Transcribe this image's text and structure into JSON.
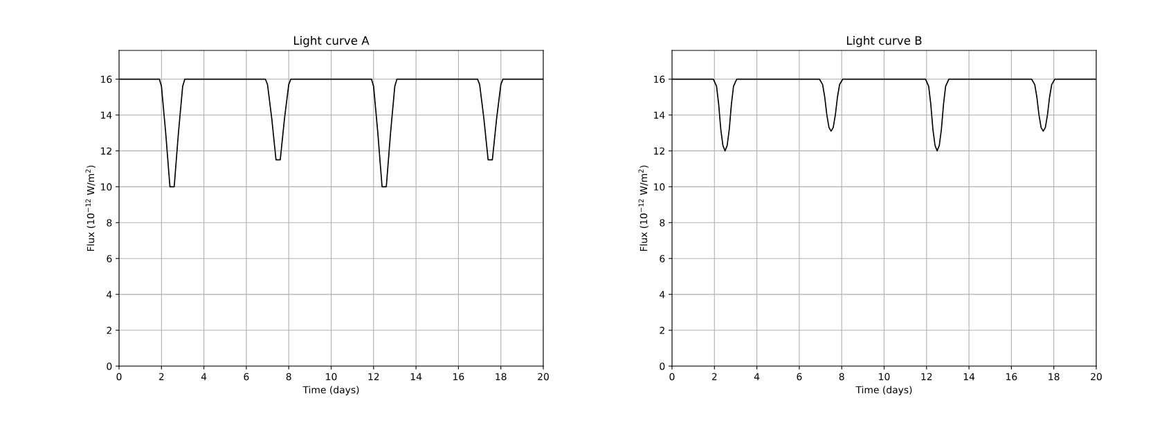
{
  "chart_data": [
    {
      "type": "line",
      "title": "Light curve A",
      "xlabel": "Time (days)",
      "ylabel": "Flux (10$^{−12}$ W/m$^{2}$)",
      "xlim": [
        0,
        20
      ],
      "ylim": [
        0,
        17.6
      ],
      "xticks": [
        0,
        2,
        4,
        6,
        8,
        10,
        12,
        14,
        16,
        18,
        20
      ],
      "yticks": [
        0,
        2,
        4,
        6,
        8,
        10,
        12,
        14,
        16
      ],
      "grid": true,
      "legend": false,
      "series": [
        {
          "color": "#000000",
          "x": [
            0,
            1.9,
            2.0,
            2.2,
            2.4,
            2.6,
            2.8,
            3.0,
            3.1,
            6.9,
            7.0,
            7.2,
            7.4,
            7.6,
            7.8,
            8.0,
            8.1,
            11.9,
            12.0,
            12.2,
            12.4,
            12.6,
            12.8,
            13.0,
            13.1,
            16.9,
            17.0,
            17.2,
            17.4,
            17.6,
            17.8,
            18.0,
            18.1,
            20
          ],
          "values": [
            16,
            16,
            15.6,
            13,
            10,
            10,
            13,
            15.6,
            16,
            16,
            15.7,
            13.8,
            11.5,
            11.5,
            13.8,
            15.7,
            16,
            16,
            15.6,
            13,
            10,
            10,
            13,
            15.6,
            16,
            16,
            15.7,
            13.8,
            11.5,
            11.5,
            13.8,
            15.7,
            16,
            16
          ]
        }
      ]
    },
    {
      "type": "line",
      "title": "Light curve B",
      "xlabel": "Time (days)",
      "ylabel": "Flux (10$^{−12}$ W/m$^{2}$)",
      "xlim": [
        0,
        20
      ],
      "ylim": [
        0,
        17.6
      ],
      "xticks": [
        0,
        2,
        4,
        6,
        8,
        10,
        12,
        14,
        16,
        18,
        20
      ],
      "yticks": [
        0,
        2,
        4,
        6,
        8,
        10,
        12,
        14,
        16
      ],
      "grid": true,
      "legend": false,
      "series": [
        {
          "color": "#000000",
          "x": [
            0,
            1.95,
            2.1,
            2.2,
            2.3,
            2.4,
            2.5,
            2.6,
            2.7,
            2.8,
            2.9,
            3.05,
            6.95,
            7.1,
            7.2,
            7.3,
            7.4,
            7.5,
            7.6,
            7.7,
            7.8,
            7.9,
            8.05,
            11.95,
            12.1,
            12.2,
            12.3,
            12.4,
            12.5,
            12.6,
            12.7,
            12.8,
            12.9,
            13.05,
            16.95,
            17.1,
            17.2,
            17.3,
            17.4,
            17.5,
            17.6,
            17.7,
            17.8,
            17.9,
            18.05,
            20
          ],
          "values": [
            16,
            16,
            15.6,
            14.6,
            13.2,
            12.3,
            12,
            12.3,
            13.2,
            14.6,
            15.6,
            16,
            16,
            15.7,
            15,
            14,
            13.3,
            13.1,
            13.3,
            14,
            15,
            15.7,
            16,
            16,
            15.6,
            14.6,
            13.2,
            12.3,
            12,
            12.3,
            13.2,
            14.6,
            15.6,
            16,
            16,
            15.7,
            15,
            14,
            13.3,
            13.1,
            13.3,
            14,
            15,
            15.7,
            16,
            16
          ]
        }
      ]
    }
  ]
}
